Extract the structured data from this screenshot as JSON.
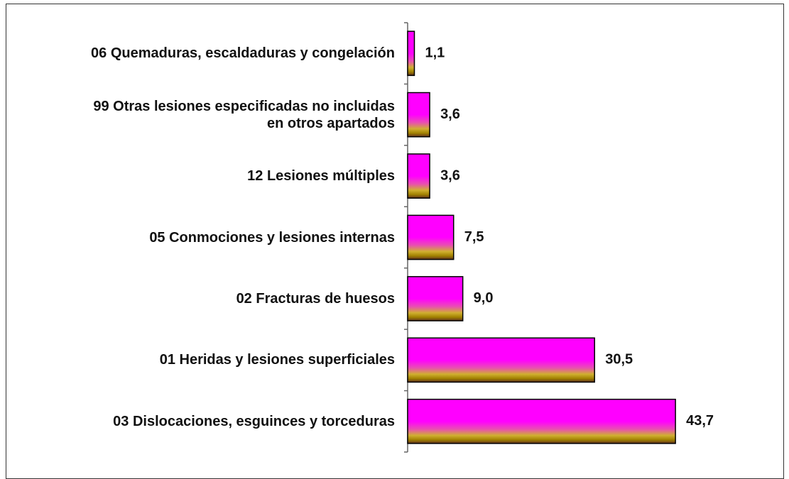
{
  "chart_data": {
    "type": "bar",
    "orientation": "horizontal",
    "categories": [
      "06 Quemaduras, escaldaduras y congelación",
      "99 Otras lesiones especificadas no incluidas\nen otros apartados",
      "12 Lesiones múltiples",
      "05 Conmociones y lesiones internas",
      "02 Fracturas de huesos",
      "01 Heridas y lesiones superficiales",
      "03 Dislocaciones, esguinces y torceduras"
    ],
    "values": [
      1.1,
      3.6,
      3.6,
      7.5,
      9.0,
      30.5,
      43.7
    ],
    "value_labels": [
      "1,1",
      "3,6",
      "3,6",
      "7,5",
      "9,0",
      "30,5",
      "43,7"
    ],
    "xlim": [
      0,
      50
    ]
  }
}
